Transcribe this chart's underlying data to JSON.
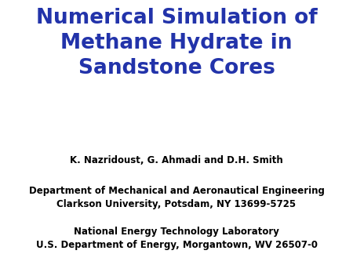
{
  "title_line1": "Numerical Simulation of",
  "title_line2": "Methane Hydrate in",
  "title_line3": "Sandstone Cores",
  "title_color": "#2233AA",
  "title_fontsize": 19,
  "title_fontweight": "bold",
  "author_line": "K. Nazridoust, G. Ahmadi and D.H. Smith",
  "dept_line1": "Department of Mechanical and Aeronautical Engineering",
  "dept_line2": "Clarkson University, Potsdam, NY 13699-5725",
  "lab_line1": "National Energy Technology Laboratory",
  "lab_line2": "U.S. Department of Energy, Morgantown, WV 26507-0",
  "body_color": "#000000",
  "body_fontsize": 8.5,
  "background_color": "#ffffff",
  "author_fontweight": "bold",
  "dept_fontweight": "bold",
  "lab_fontweight": "bold"
}
